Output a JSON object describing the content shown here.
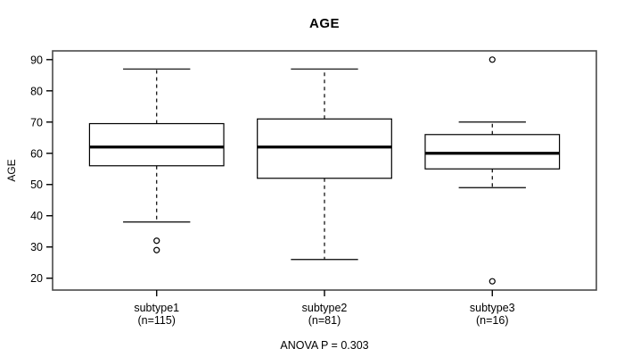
{
  "chart_data": {
    "type": "box",
    "title": "AGE",
    "ylabel": "AGE",
    "caption": "ANOVA P = 0.303",
    "yticks": [
      20,
      30,
      40,
      50,
      60,
      70,
      80,
      90
    ],
    "ylim": [
      16.2,
      92.8
    ],
    "xlim": [
      0.38,
      3.62
    ],
    "grid": false,
    "legend": "none",
    "groups": [
      {
        "label": "subtype1",
        "n_label": "(n=115)",
        "position": 1,
        "whisker_low": 38,
        "q1": 56,
        "median": 62,
        "q3": 69.5,
        "whisker_high": 87,
        "outliers": [
          29,
          32
        ]
      },
      {
        "label": "subtype2",
        "n_label": "(n=81)",
        "position": 2,
        "whisker_low": 26,
        "q1": 52,
        "median": 62,
        "q3": 71,
        "whisker_high": 87,
        "outliers": []
      },
      {
        "label": "subtype3",
        "n_label": "(n=16)",
        "position": 3,
        "whisker_low": 49,
        "q1": 55,
        "median": 60,
        "q3": 66,
        "whisker_high": 70,
        "outliers": [
          19,
          90
        ]
      }
    ],
    "colors": {
      "line": "#000000",
      "box_fill": "#ffffff",
      "border": "#4a4a4a",
      "background": "#ffffff"
    }
  }
}
